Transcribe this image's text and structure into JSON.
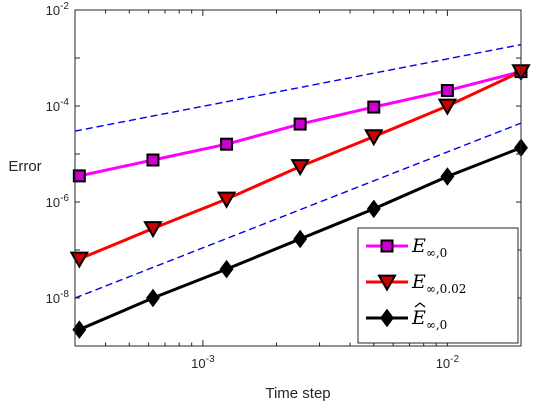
{
  "chart_data": {
    "type": "line",
    "xscale": "log",
    "yscale": "log",
    "xlabel": "Time step",
    "ylabel": "Error",
    "xlim": [
      0.0003,
      0.02
    ],
    "ylim": [
      1e-09,
      0.01
    ],
    "grid": false,
    "legend_location": "bottom-right",
    "x_ticks": [
      {
        "value": 0.001,
        "base": "10",
        "exp": "-3"
      },
      {
        "value": 0.01,
        "base": "10",
        "exp": "-2"
      }
    ],
    "y_ticks": [
      {
        "value": 1e-08,
        "base": "10",
        "exp": "-8"
      },
      {
        "value": 1e-06,
        "base": "10",
        "exp": "-6"
      },
      {
        "value": 0.0001,
        "base": "10",
        "exp": "-4"
      },
      {
        "value": 0.01,
        "base": "10",
        "exp": "-2"
      }
    ],
    "series": [
      {
        "name": "E∞,0",
        "legend_main": "E",
        "legend_sub": "∞,0",
        "hat": false,
        "color": "#ff00ff",
        "marker": "square",
        "marker_face": "#cc00cc",
        "x": [
          0.0003125,
          0.000625,
          0.00125,
          0.0025,
          0.005,
          0.01,
          0.02
        ],
        "y": [
          3.5e-06,
          7.5e-06,
          1.6e-05,
          4.2e-05,
          9.5e-05,
          0.00021,
          0.00052
        ]
      },
      {
        "name": "E∞,0.02",
        "legend_main": "E",
        "legend_sub": "∞,0.02",
        "hat": false,
        "color": "#ff0000",
        "marker": "triangle-down",
        "marker_face": "#cc0000",
        "x": [
          0.0003125,
          0.000625,
          0.00125,
          0.0025,
          0.005,
          0.01,
          0.02
        ],
        "y": [
          6.5e-08,
          2.8e-07,
          1.15e-06,
          5.5e-06,
          2.3e-05,
          0.0001,
          0.00052
        ]
      },
      {
        "name": "Ê∞,0",
        "legend_main": "E",
        "legend_sub": "∞,0",
        "hat": true,
        "color": "#000000",
        "marker": "diamond",
        "marker_face": "#000000",
        "x": [
          0.0003125,
          0.000625,
          0.00125,
          0.0025,
          0.005,
          0.01,
          0.02
        ],
        "y": [
          2.2e-09,
          1e-08,
          4e-08,
          1.7e-07,
          7.2e-07,
          3.4e-06,
          1.35e-05
        ]
      }
    ],
    "reference_lines": [
      {
        "style": "dashed",
        "color": "#0000ee",
        "x": [
          0.0003,
          0.02
        ],
        "y": [
          3e-05,
          0.0019
        ]
      },
      {
        "style": "dashed",
        "color": "#0000ee",
        "x": [
          0.0003,
          0.02
        ],
        "y": [
          1e-08,
          4.4e-05
        ]
      }
    ]
  }
}
